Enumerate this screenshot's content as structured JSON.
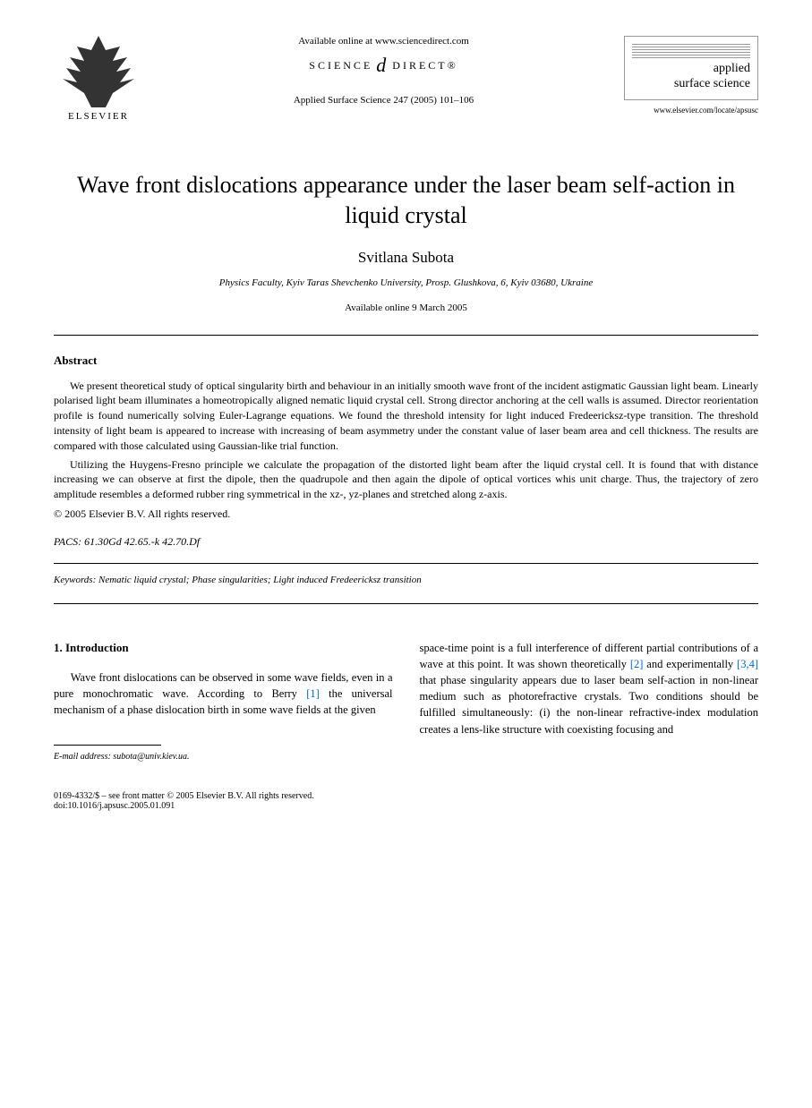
{
  "header": {
    "publisher": "ELSEVIER",
    "available_online": "Available online at www.sciencedirect.com",
    "science_direct_left": "SCIENCE",
    "science_direct_right": "DIRECT®",
    "citation": "Applied Surface Science 247 (2005) 101–106",
    "journal_name_line1": "applied",
    "journal_name_line2": "surface science",
    "journal_url": "www.elsevier.com/locate/apsusc"
  },
  "article": {
    "title": "Wave front dislocations appearance under the laser beam self-action in liquid crystal",
    "author": "Svitlana Subota",
    "affiliation": "Physics Faculty, Kyiv Taras Shevchenko University, Prosp. Glushkova, 6, Kyiv 03680, Ukraine",
    "available_date": "Available online 9 March 2005"
  },
  "abstract": {
    "heading": "Abstract",
    "para1": "We present theoretical study of optical singularity birth and behaviour in an initially smooth wave front of the incident astigmatic Gaussian light beam. Linearly polarised light beam illuminates a homeotropically aligned nematic liquid crystal cell. Strong director anchoring at the cell walls is assumed. Director reorientation profile is found numerically solving Euler-Lagrange equations. We found the threshold intensity for light induced Fredeericksz-type transition. The threshold intensity of light beam is appeared to increase with increasing of beam asymmetry under the constant value of laser beam area and cell thickness. The results are compared with those calculated using Gaussian-like trial function.",
    "para2": "Utilizing the Huygens-Fresno principle we calculate the propagation of the distorted light beam after the liquid crystal cell. It is found that with distance increasing we can observe at first the dipole, then the quadrupole and then again the dipole of optical vortices whis unit charge. Thus, the trajectory of zero amplitude resembles a deformed rubber ring symmetrical in the xz-, yz-planes and stretched along z-axis.",
    "copyright": "© 2005 Elsevier B.V. All rights reserved."
  },
  "pacs": {
    "label": "PACS:",
    "value": " 61.30Gd 42.65.-k 42.70.Df"
  },
  "keywords": {
    "label": "Keywords:",
    "value": " Nematic liquid crystal; Phase singularities; Light induced Fredeericksz transition"
  },
  "body": {
    "section_heading": "1. Introduction",
    "left_col": "Wave front dislocations can be observed in some wave fields, even in a pure monochromatic wave. According to Berry ",
    "ref1": "[1]",
    "left_col_cont": " the universal mechanism of a phase dislocation birth in some wave fields at the given",
    "right_col_a": "space-time point is a full interference of different partial contributions of a wave at this point. It was shown theoretically ",
    "ref2": "[2]",
    "right_col_b": " and experimentally ",
    "ref34": "[3,4]",
    "right_col_c": " that phase singularity appears due to laser beam self-action in non-linear medium such as photorefractive crystals. Two conditions should be fulfilled simultaneously: (i) the non-linear refractive-index modulation creates a lens-like structure with coexisting focusing and"
  },
  "footnote": {
    "email_label": "E-mail address:",
    "email_value": " subota@univ.kiev.ua."
  },
  "footer": {
    "line1": "0169-4332/$ – see front matter © 2005 Elsevier B.V. All rights reserved.",
    "line2": "doi:10.1016/j.apsusc.2005.01.091"
  },
  "colors": {
    "text": "#000000",
    "link": "#0066cc",
    "background": "#ffffff",
    "rule": "#000000"
  },
  "typography": {
    "title_fontsize": 26,
    "author_fontsize": 17,
    "body_fontsize": 12.5,
    "abstract_fontsize": 12,
    "small_fontsize": 11,
    "footnote_fontsize": 10
  }
}
